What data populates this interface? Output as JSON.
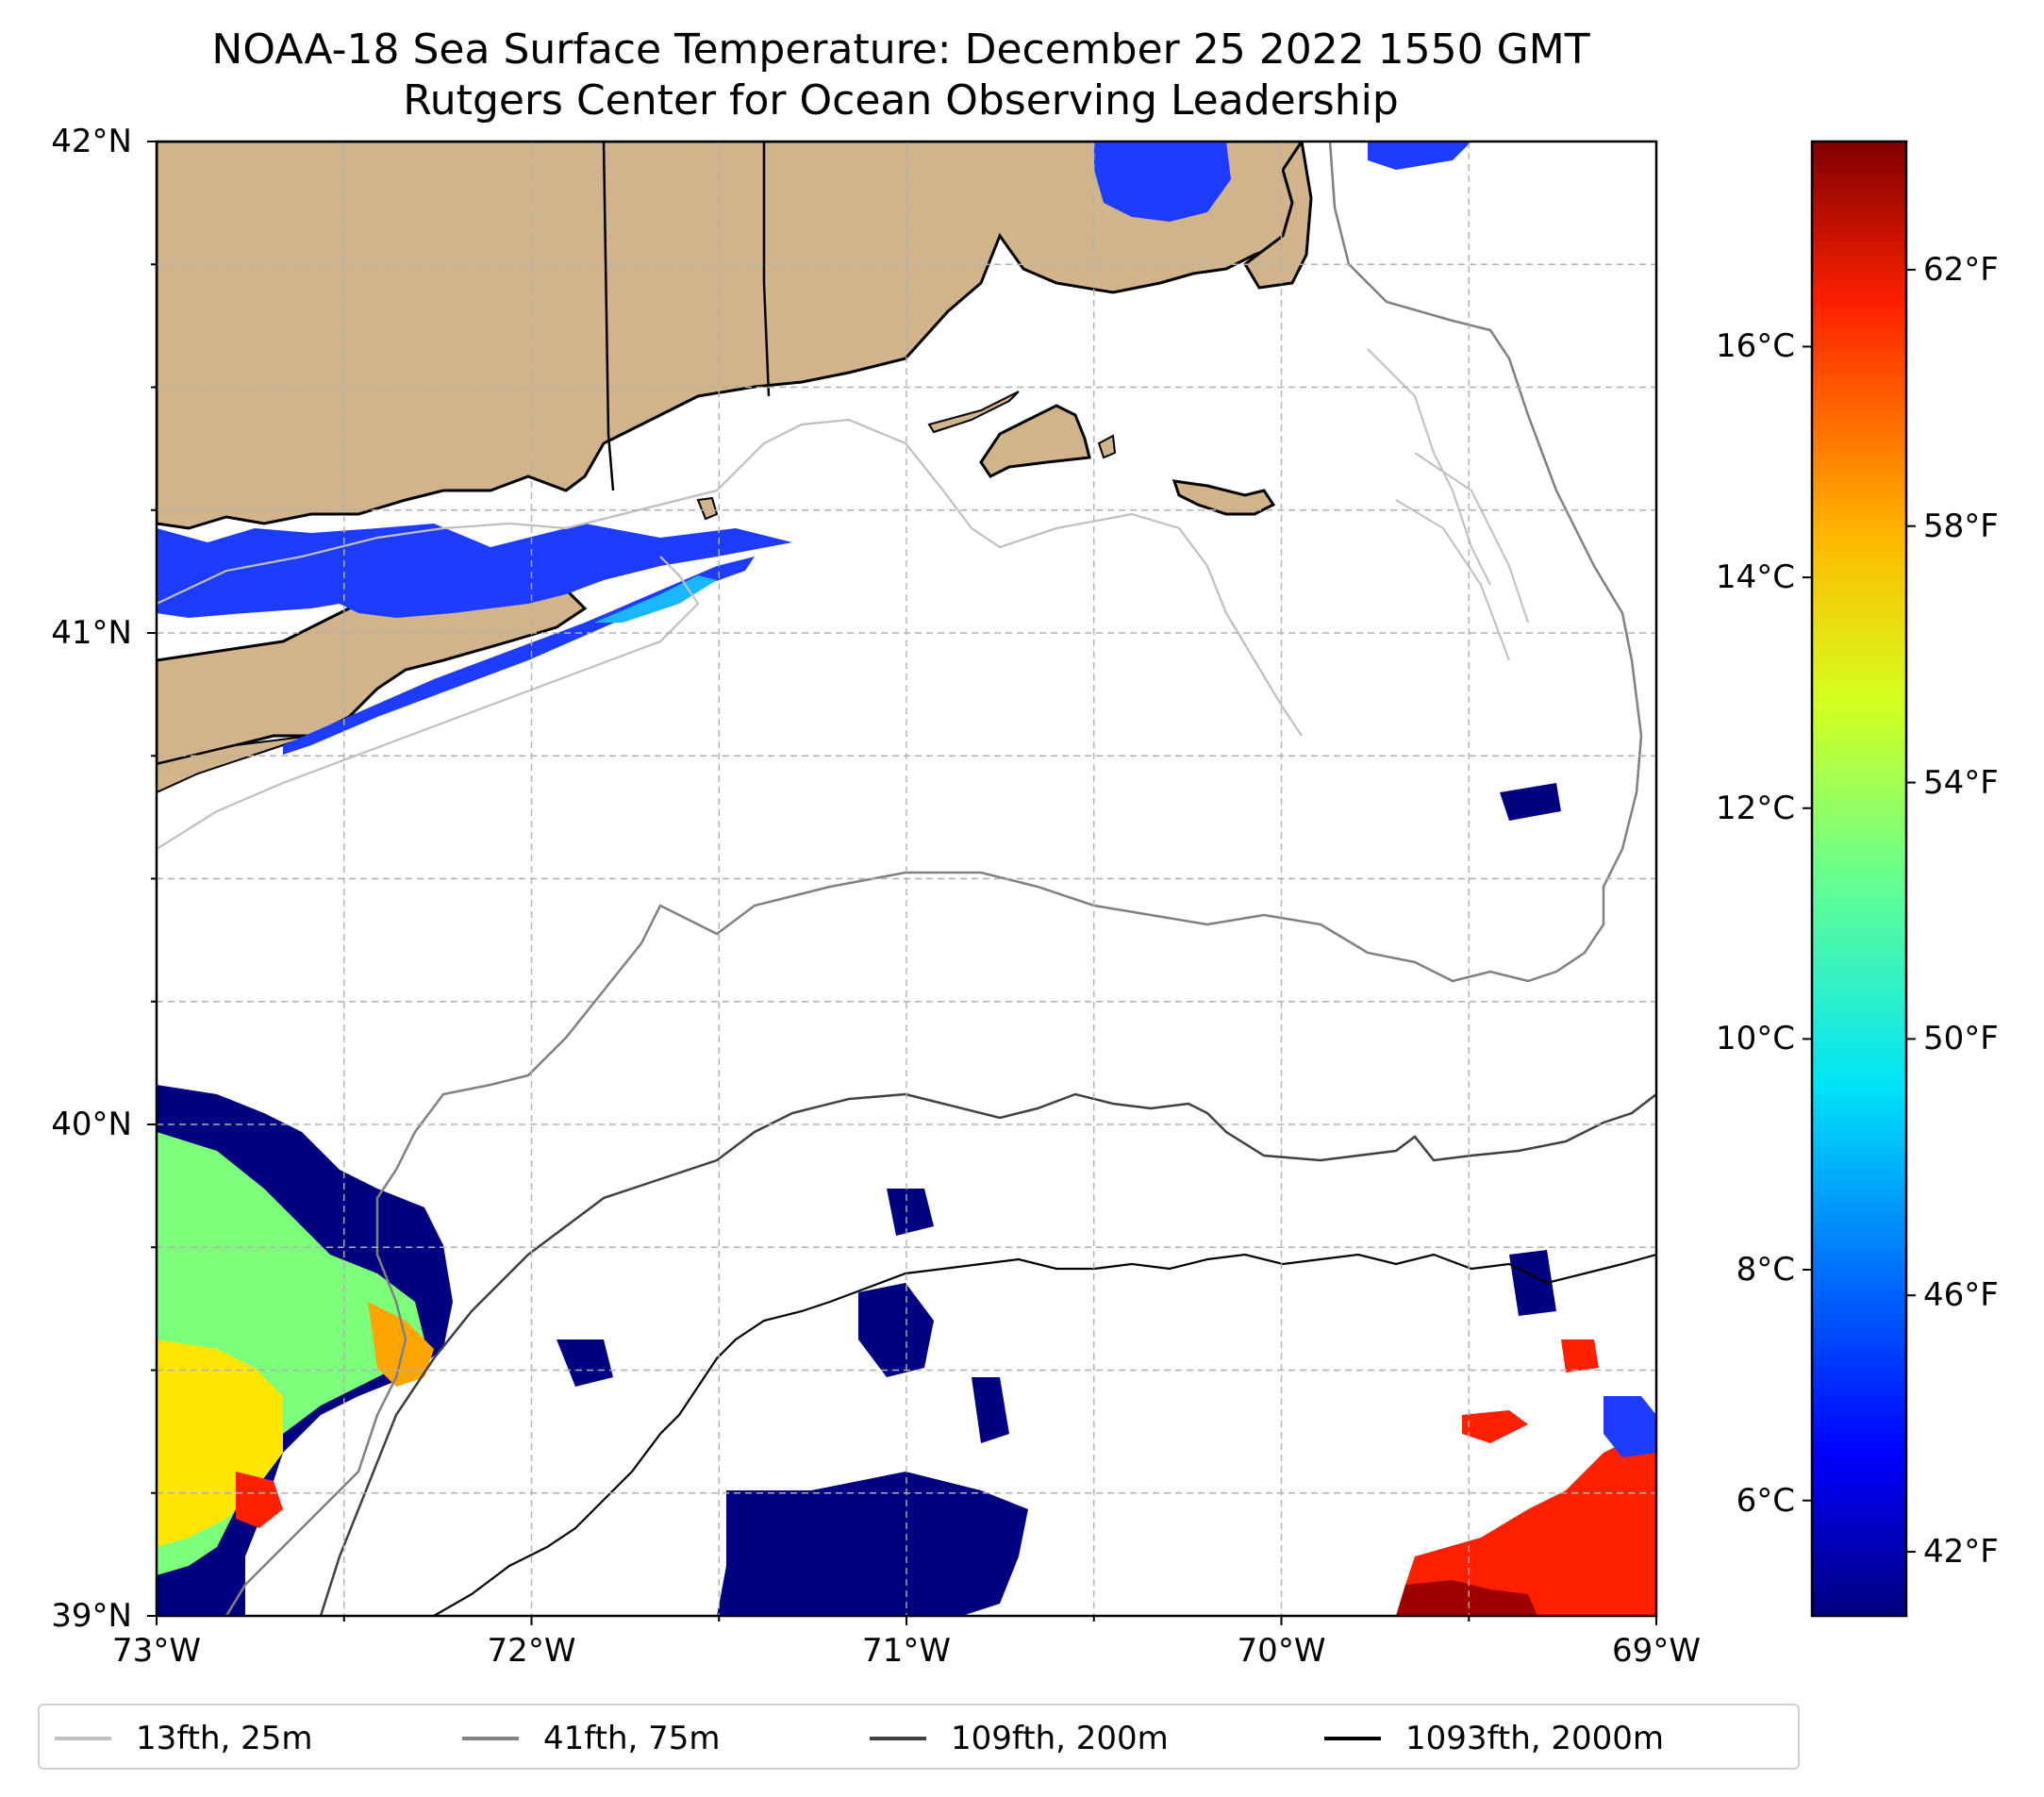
{
  "title": {
    "line1": "NOAA-18 Sea Surface Temperature: December 25 2022 1550 GMT",
    "line2": "Rutgers Center for Ocean Observing Leadership"
  },
  "colors": {
    "land": "#d2b48c",
    "coast": "#000000",
    "grid": "#b0b0b0",
    "cold": "#000080",
    "cool": "#1d3cff",
    "mid": "#7cff7a",
    "warm": "#ffa500",
    "hot": "#ff2000",
    "deep_hot": "#a00000"
  },
  "map": {
    "lat_labels": [
      "42°N",
      "41°N",
      "40°N",
      "39°N"
    ],
    "lon_labels": [
      "73°W",
      "72°W",
      "71°W",
      "70°W",
      "69°W"
    ]
  },
  "colorbar": {
    "celsius_ticks": [
      "16°C",
      "14°C",
      "12°C",
      "10°C",
      "8°C",
      "6°C"
    ],
    "fahrenheit_ticks": [
      "62°F",
      "58°F",
      "54°F",
      "50°F",
      "46°F",
      "42°F"
    ],
    "celsius_values": [
      16,
      14,
      12,
      10,
      8,
      6
    ],
    "fahrenheit_values": [
      62,
      58,
      54,
      50,
      46,
      42
    ],
    "range_f": [
      41,
      64
    ]
  },
  "legend": {
    "items": [
      {
        "label": "13fth, 25m",
        "color": "#bfbfbf"
      },
      {
        "label": "41fth, 75m",
        "color": "#808080"
      },
      {
        "label": "109fth, 200m",
        "color": "#404040"
      },
      {
        "label": "1093fth, 2000m",
        "color": "#000000"
      }
    ]
  }
}
